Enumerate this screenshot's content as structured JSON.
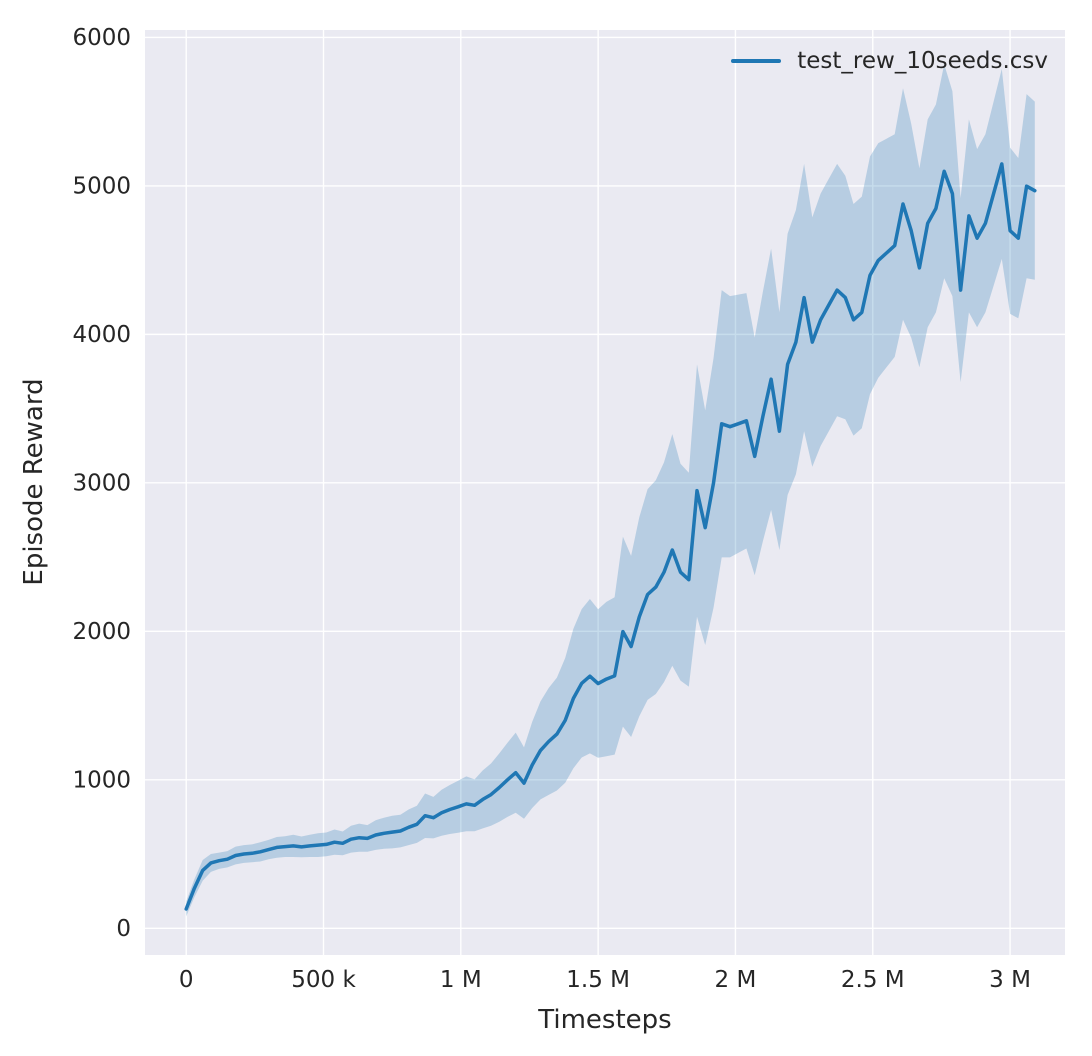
{
  "figure": {
    "background_color": "#ffffff",
    "plot_background_color": "#eaeaf2",
    "grid_color": "#ffffff",
    "text_color": "#262626",
    "line_color": "#1f77b4",
    "band_opacity": 0.25
  },
  "legend": {
    "label": "test_rew_10seeds.csv"
  },
  "chart_data": {
    "type": "line",
    "title": "",
    "xlabel": "Timesteps",
    "ylabel": "Episode Reward",
    "xlim": [
      -150000,
      3200000
    ],
    "ylim": [
      -180,
      6050
    ],
    "grid": true,
    "legend_position": "upper right",
    "x_ticks": [
      {
        "value": 0,
        "label": "0"
      },
      {
        "value": 500000,
        "label": "500 k"
      },
      {
        "value": 1000000,
        "label": "1 M"
      },
      {
        "value": 1500000,
        "label": "1.5 M"
      },
      {
        "value": 2000000,
        "label": "2 M"
      },
      {
        "value": 2500000,
        "label": "2.5 M"
      },
      {
        "value": 3000000,
        "label": "3 M"
      }
    ],
    "y_ticks": [
      {
        "value": 0,
        "label": "0"
      },
      {
        "value": 1000,
        "label": "1000"
      },
      {
        "value": 2000,
        "label": "2000"
      },
      {
        "value": 3000,
        "label": "3000"
      },
      {
        "value": 4000,
        "label": "4000"
      },
      {
        "value": 5000,
        "label": "5000"
      },
      {
        "value": 6000,
        "label": "6000"
      }
    ],
    "series": [
      {
        "name": "test_rew_10seeds.csv",
        "x_start": 0,
        "x_step": 30000,
        "mean": [
          130,
          270,
          390,
          440,
          455,
          465,
          490,
          500,
          505,
          515,
          530,
          545,
          550,
          555,
          548,
          555,
          560,
          565,
          580,
          572,
          600,
          610,
          605,
          628,
          640,
          648,
          655,
          680,
          700,
          758,
          745,
          778,
          800,
          818,
          838,
          828,
          868,
          900,
          948,
          1000,
          1048,
          978,
          1100,
          1198,
          1258,
          1308,
          1400,
          1548,
          1650,
          1698,
          1648,
          1678,
          1700,
          1998,
          1898,
          2098,
          2248,
          2298,
          2398,
          2548,
          2398,
          2348,
          2948,
          2698,
          2998,
          3398,
          3378,
          3398,
          3418,
          3178,
          3448,
          3698,
          3348,
          3798,
          3948,
          4248,
          3948,
          4098,
          4198,
          4298,
          4248,
          4098,
          4148,
          4398,
          4498,
          4548,
          4598,
          4878,
          4698,
          4448,
          4748,
          4848,
          5098,
          4948,
          4298,
          4798,
          4648,
          4748,
          4948,
          5148,
          4698,
          4648,
          4998,
          4968
        ],
        "band_half_width": [
          50,
          60,
          70,
          60,
          55,
          55,
          60,
          60,
          60,
          65,
          65,
          70,
          70,
          75,
          70,
          75,
          80,
          80,
          85,
          80,
          90,
          95,
          90,
          100,
          105,
          110,
          110,
          120,
          125,
          150,
          140,
          155,
          165,
          175,
          185,
          175,
          195,
          210,
          230,
          250,
          270,
          240,
          290,
          330,
          360,
          380,
          420,
          470,
          500,
          520,
          500,
          520,
          530,
          640,
          610,
          670,
          710,
          720,
          740,
          780,
          730,
          720,
          850,
          790,
          840,
          900,
          880,
          870,
          860,
          800,
          840,
          880,
          800,
          880,
          890,
          900,
          840,
          850,
          850,
          850,
          820,
          780,
          780,
          800,
          790,
          770,
          750,
          780,
          720,
          670,
          700,
          700,
          720,
          690,
          620,
          650,
          600,
          600,
          620,
          640,
          560,
          540,
          620,
          600
        ]
      }
    ]
  }
}
